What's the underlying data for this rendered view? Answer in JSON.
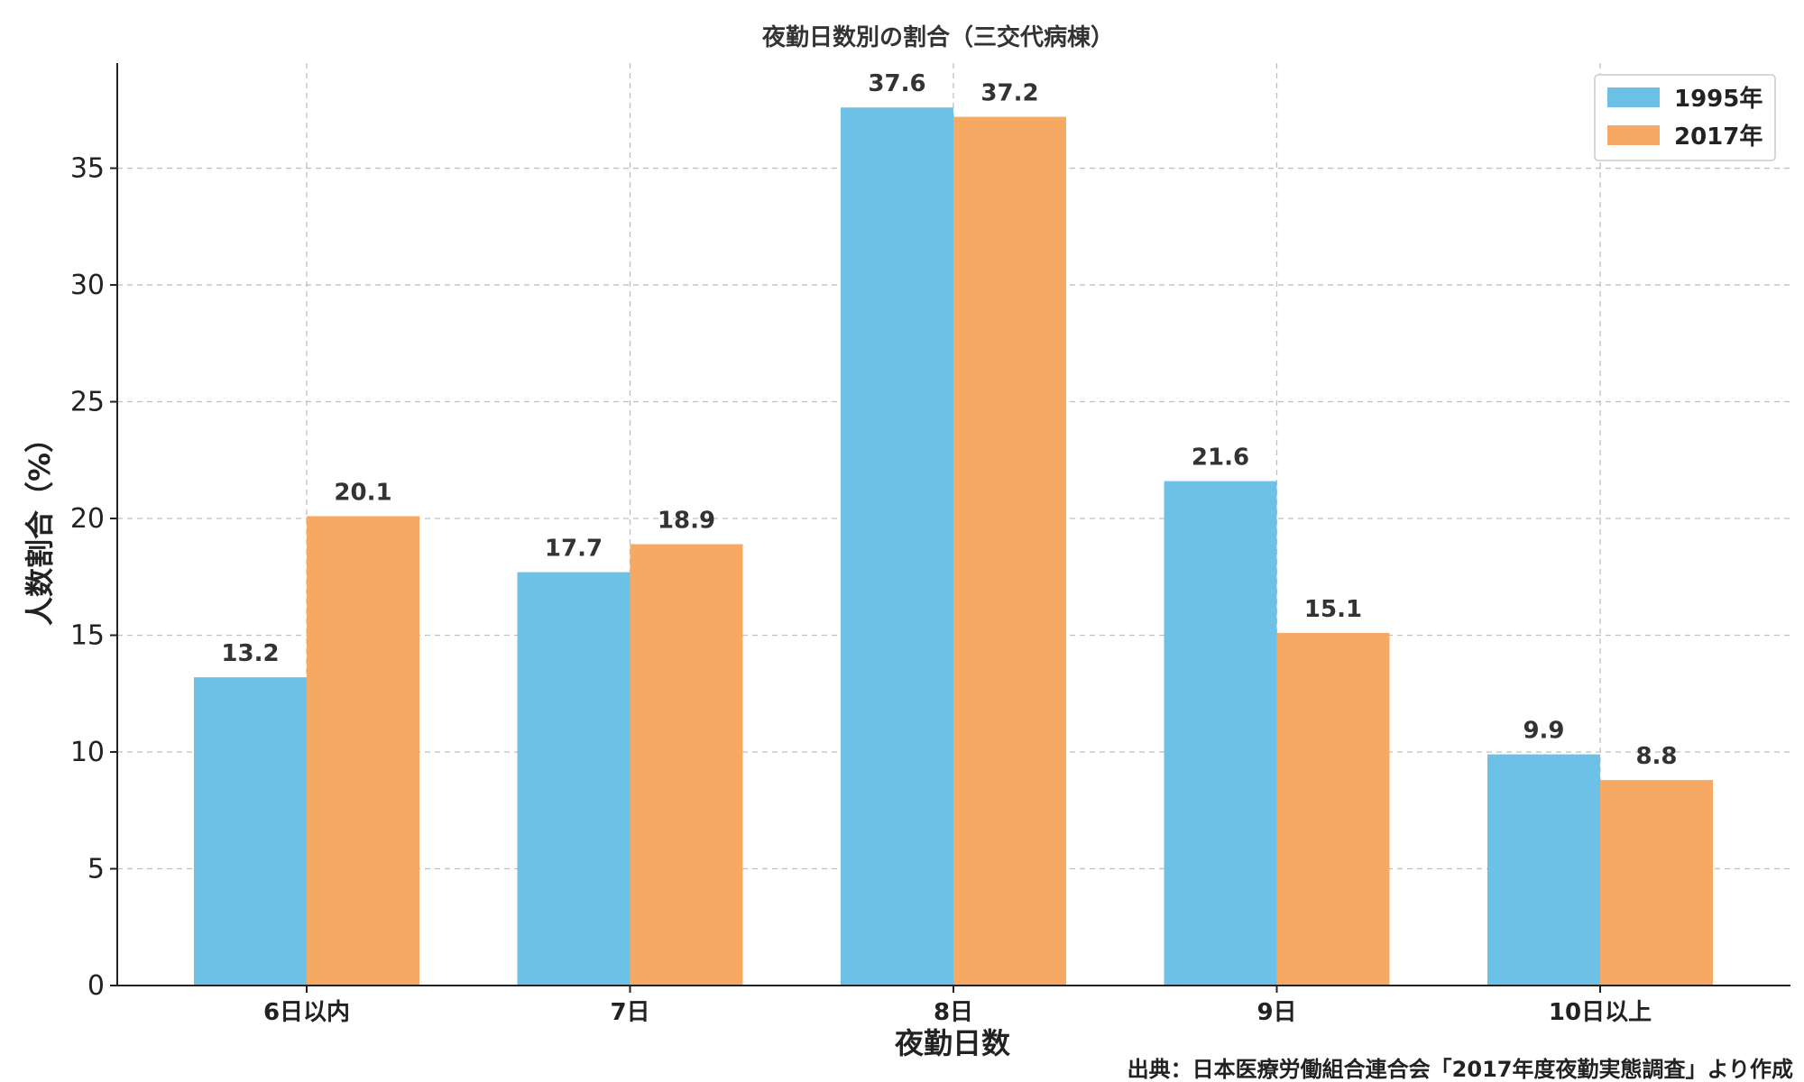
{
  "chart_data": {
    "type": "bar",
    "title": "夜勤日数別の割合（三交代病棟）",
    "xlabel": "夜勤日数",
    "ylabel": "人数割合（%）",
    "categories": [
      "6日以内",
      "7日",
      "8日",
      "9日",
      "10日以上"
    ],
    "series": [
      {
        "name": "1995年",
        "color": "#6ec1e6",
        "values": [
          13.2,
          17.7,
          37.6,
          21.6,
          9.9
        ]
      },
      {
        "name": "2017年",
        "color": "#f5a962",
        "values": [
          20.1,
          18.9,
          37.2,
          15.1,
          8.8
        ]
      }
    ],
    "ylim": [
      0,
      39.5
    ],
    "yticks": [
      0,
      5,
      10,
      15,
      20,
      25,
      30,
      35
    ],
    "grid": true,
    "legend": "top-right",
    "source": "出典：日本医療労働組合連合会「2017年度夜勤実態調査」より作成"
  }
}
